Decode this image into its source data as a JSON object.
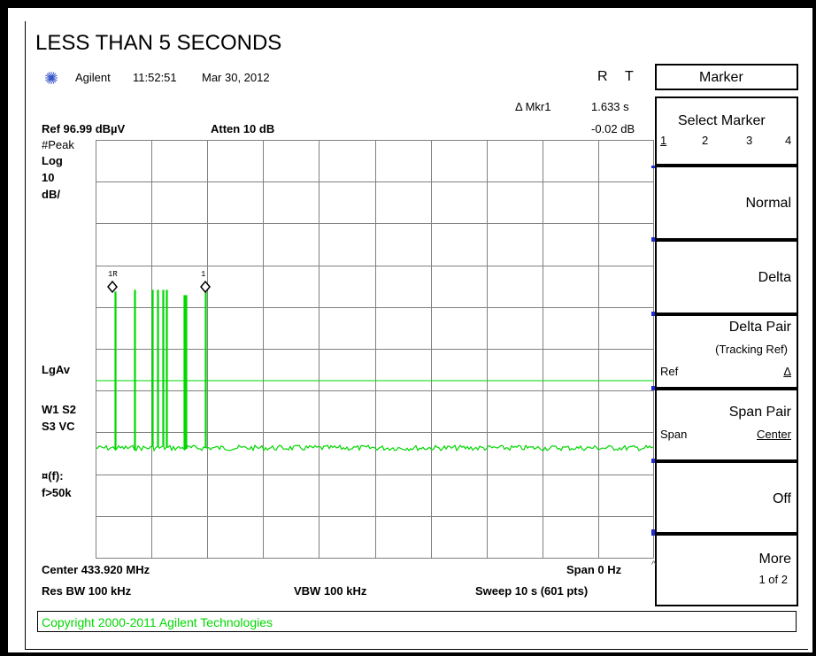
{
  "title": "LESS THAN 5 SECONDS",
  "status": {
    "instrument": "Agilent",
    "time": "11:52:51",
    "date": "Mar 30, 2012",
    "indicator_r": "R",
    "indicator_t": "T"
  },
  "readouts": {
    "ref_level": "Ref 96.99 dBµV",
    "atten": "Atten 10 dB",
    "marker_label": "Δ Mkr1",
    "marker_time": "1.633 s",
    "marker_delta": "-0.02 dB",
    "detector": "#Peak",
    "scale_log": "Log",
    "scale_value": "10",
    "scale_unit": "dB/",
    "avg_mode": "LgAv",
    "trace_line1": "W1  S2",
    "trace_line2": "S3  VC",
    "filter_line1": "¤(f):",
    "filter_line2": "f>50k",
    "center": "Center 433.920 MHz",
    "span": "Span 0 Hz",
    "res_bw": "Res BW 100 kHz",
    "vbw": "VBW 100 kHz",
    "sweep": "Sweep 10 s (601 pts)",
    "marker1r_tag": "1R",
    "marker1_tag": "1"
  },
  "softkeys": {
    "header": "Marker",
    "select_marker": "Select Marker",
    "select_options": [
      "1",
      "2",
      "3",
      "4"
    ],
    "normal": "Normal",
    "delta": "Delta",
    "delta_pair": "Delta Pair",
    "tracking_ref": "(Tracking Ref)",
    "delta_pair_ref": "Ref",
    "delta_pair_delta": "Δ",
    "span_pair": "Span Pair",
    "span_pair_span": "Span",
    "span_pair_center": "Center",
    "off": "Off",
    "more": "More",
    "more_page": "1 of 2"
  },
  "copyright": "Copyright 2000-2011 Agilent Technologies",
  "colors": {
    "trace": "#00d800",
    "accent_blue": "#1e2bd0",
    "grid": "#808080"
  }
}
